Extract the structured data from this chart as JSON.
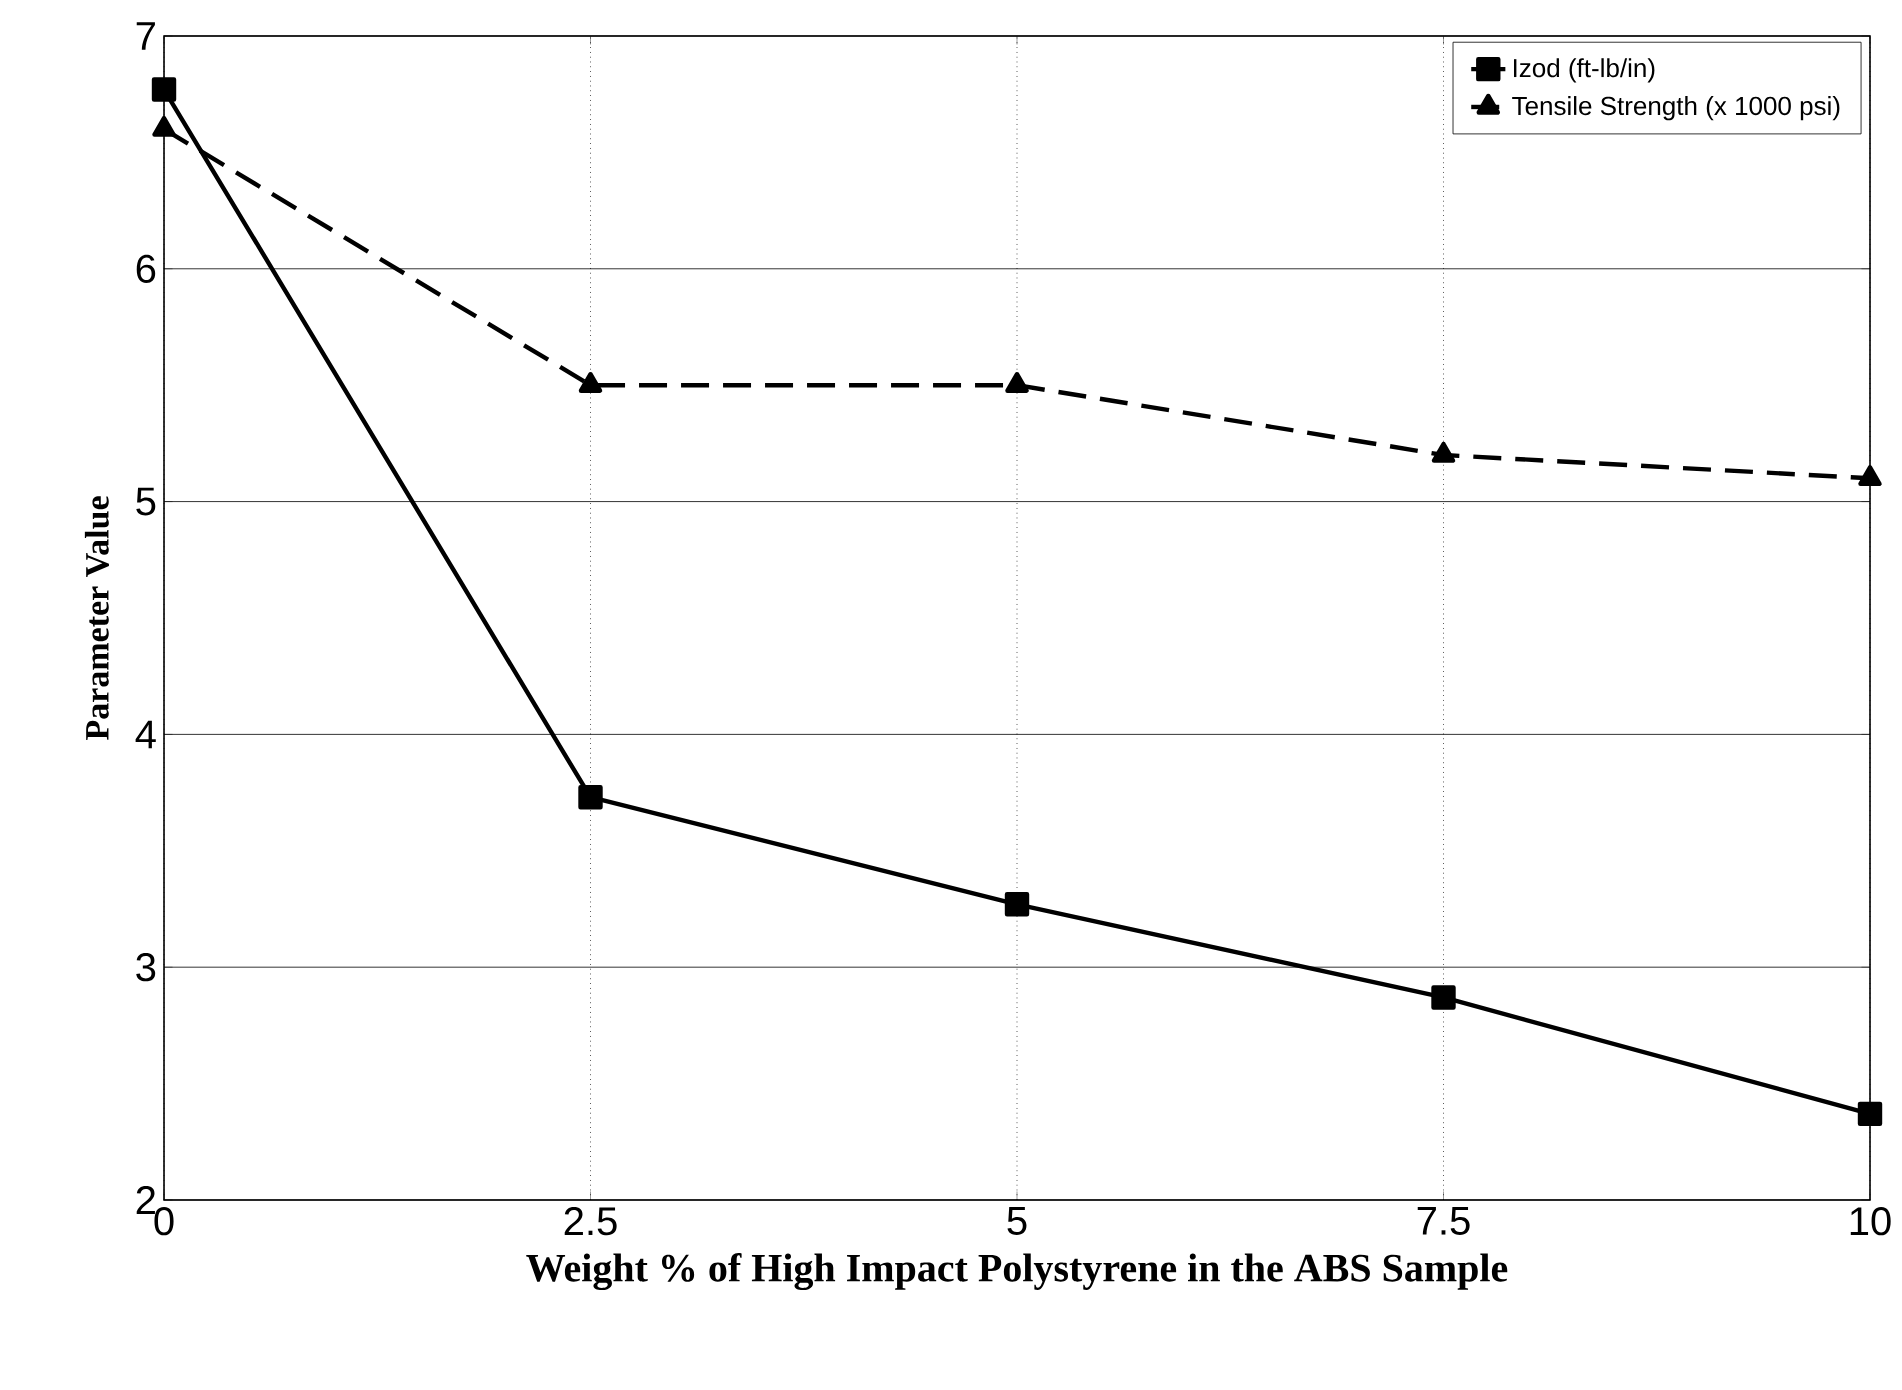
{
  "chart_data": {
    "type": "line",
    "xlabel": "Weight % of High Impact Polystyrene in the ABS Sample",
    "ylabel": "Parameter Value",
    "x": [
      0,
      2.5,
      5,
      7.5,
      10
    ],
    "series": [
      {
        "name": "Izod (ft-lb/in)",
        "color": "#000000",
        "marker": "square",
        "line_style": "solid",
        "values": [
          6.77,
          3.73,
          3.27,
          2.87,
          2.37
        ]
      },
      {
        "name": "Tensile Strength (x 1000 psi)",
        "color": "#000000",
        "marker": "triangle",
        "line_style": "dashed",
        "values": [
          6.6,
          5.5,
          5.5,
          5.2,
          5.1
        ]
      }
    ],
    "xlim": [
      0,
      10
    ],
    "ylim": [
      2,
      7
    ],
    "xticks": [
      0,
      2.5,
      5,
      7.5,
      10
    ],
    "yticks": [
      2,
      3,
      4,
      5,
      6,
      7
    ],
    "grid": true,
    "legend": "top right"
  }
}
